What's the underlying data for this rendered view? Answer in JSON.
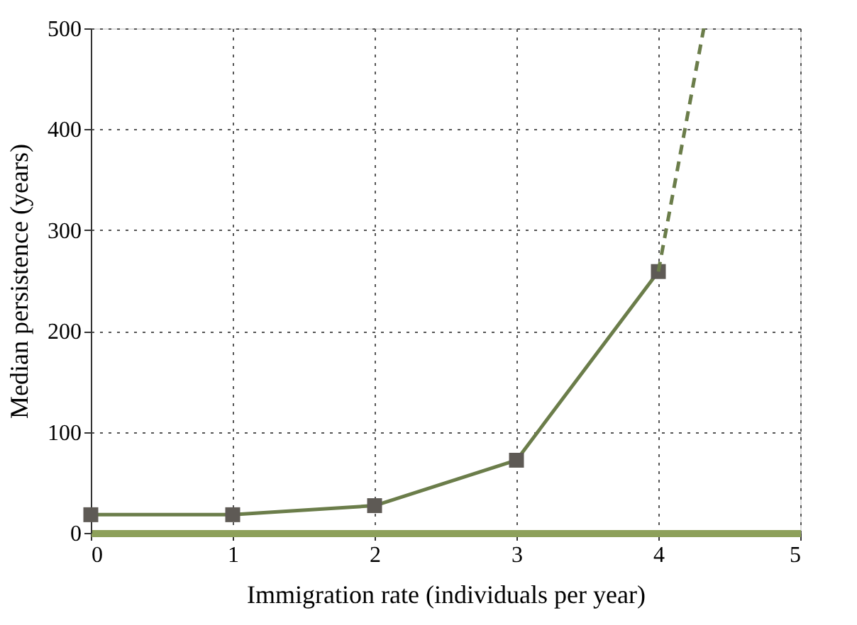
{
  "chart_data": {
    "type": "line",
    "xlabel": "Immigration rate (individuals per year)",
    "ylabel": "Median persistence (years)",
    "xlim": [
      0,
      5
    ],
    "xticks": [
      0,
      1,
      2,
      3,
      4,
      5
    ],
    "ylim": [
      0,
      500
    ],
    "yticks": [
      0,
      100,
      200,
      300,
      400,
      500
    ],
    "grid": true,
    "series": [
      {
        "x": [
          0,
          1,
          2,
          3,
          4
        ],
        "values": [
          18,
          18,
          27,
          72,
          259
        ],
        "color": "#6b7d4a",
        "marker": "square",
        "line_style": "solid"
      },
      {
        "x": [
          4,
          4.32
        ],
        "values": [
          259,
          500
        ],
        "color": "#6b7d4a",
        "marker": "none",
        "line_style": "dashed"
      }
    ]
  }
}
